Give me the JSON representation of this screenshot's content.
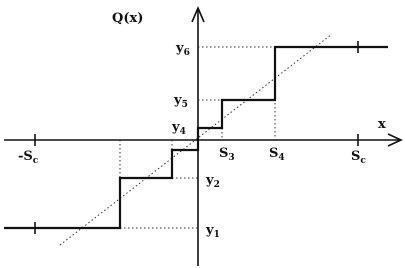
{
  "axes": {
    "y_label": "Q(x)",
    "x_label": "x"
  },
  "x_labels": [
    {
      "main": "-S",
      "sub": "c"
    },
    {
      "main": "S",
      "sub": "3"
    },
    {
      "main": "S",
      "sub": "4"
    },
    {
      "main": "S",
      "sub": "c"
    }
  ],
  "y_labels": [
    {
      "main": "y",
      "sub": "6"
    },
    {
      "main": "y",
      "sub": "5"
    },
    {
      "main": "y",
      "sub": "4"
    },
    {
      "main": "y",
      "sub": "2"
    },
    {
      "main": "y",
      "sub": "1"
    }
  ]
}
